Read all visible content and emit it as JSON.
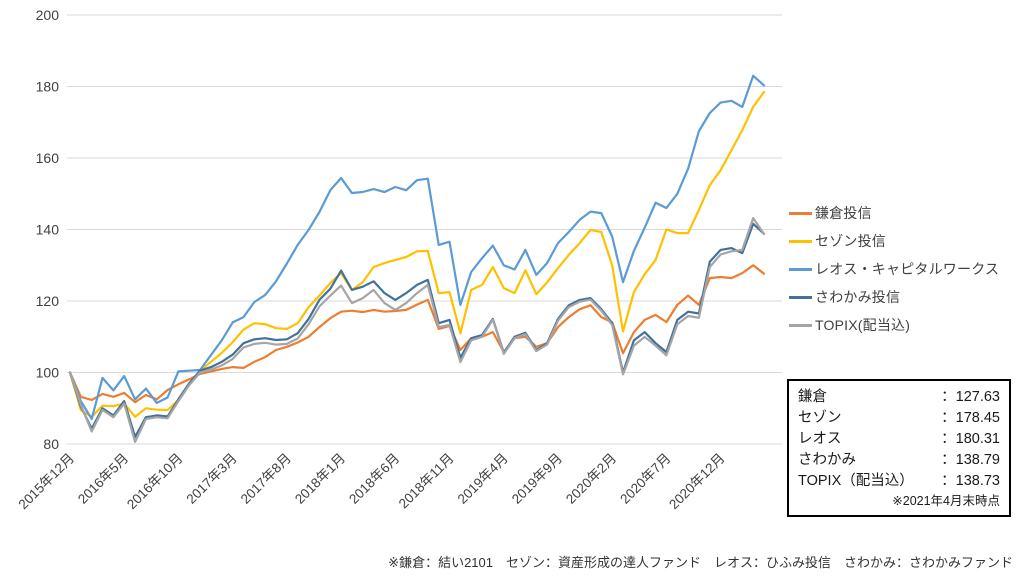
{
  "chart_data": {
    "type": "line",
    "title": "",
    "xlabel": "",
    "ylabel": "",
    "ylim": [
      80,
      200
    ],
    "grid": "horizontal",
    "legend_position": "right",
    "baseline_note": "index, start = 100 at 2015-12",
    "y_ticks": [
      80,
      100,
      120,
      140,
      160,
      180,
      200
    ],
    "x_ticks": [
      {
        "label": "2015年12月",
        "month_index": 0
      },
      {
        "label": "2016年5月",
        "month_index": 5
      },
      {
        "label": "2016年10月",
        "month_index": 10
      },
      {
        "label": "2017年3月",
        "month_index": 15
      },
      {
        "label": "2017年8月",
        "month_index": 20
      },
      {
        "label": "2018年1月",
        "month_index": 25
      },
      {
        "label": "2018年6月",
        "month_index": 30
      },
      {
        "label": "2018年11月",
        "month_index": 35
      },
      {
        "label": "2019年4月",
        "month_index": 40
      },
      {
        "label": "2019年9月",
        "month_index": 45
      },
      {
        "label": "2020年2月",
        "month_index": 50
      },
      {
        "label": "2020年7月",
        "month_index": 55
      },
      {
        "label": "2020年12月",
        "month_index": 60
      }
    ],
    "series": [
      {
        "name": "鎌倉投信",
        "color": "#ED7D31",
        "values": [
          100,
          93.2,
          92.3,
          94,
          93.2,
          94.3,
          91.7,
          93.7,
          92.5,
          95.1,
          96.7,
          98.1,
          99.6,
          100.3,
          101,
          101.5,
          101.3,
          103,
          104.3,
          106.3,
          107.2,
          108.4,
          110,
          112.7,
          115.2,
          117,
          117.3,
          116.9,
          117.5,
          117,
          117.2,
          117.5,
          119,
          120.3,
          112.2,
          113,
          106.3,
          109.6,
          110,
          111.3,
          105.7,
          109.6,
          110,
          107.2,
          108.2,
          112.7,
          115.5,
          117.7,
          118.8,
          115.5,
          114,
          105.4,
          111.3,
          114.7,
          116.1,
          114.1,
          118.9,
          121.5,
          118.9,
          126.4,
          126.7,
          126.4,
          127.8,
          130,
          127.63
        ]
      },
      {
        "name": "セゾン投信",
        "color": "#FFC000",
        "values": [
          100,
          89.5,
          87.6,
          90.7,
          90.6,
          91.3,
          87.6,
          90,
          89.6,
          89.5,
          92.3,
          97,
          100.5,
          103,
          105.5,
          108.5,
          112,
          113.8,
          113.5,
          112.4,
          112.2,
          113.8,
          118.3,
          121.5,
          125,
          127.8,
          123.1,
          125.3,
          129.5,
          130.6,
          131.5,
          132.3,
          133.9,
          134,
          122.2,
          122.5,
          111,
          123.1,
          124.5,
          129.5,
          123.6,
          122.2,
          128.6,
          121.9,
          125.2,
          129.2,
          132.9,
          136.2,
          139.9,
          139.3,
          130,
          111.5,
          122.5,
          127.5,
          131.5,
          140,
          139,
          139,
          145.5,
          152.4,
          156.6,
          162.2,
          167.8,
          174.3,
          178.45
        ]
      },
      {
        "name": "レオス・キャピタルワークス",
        "color": "#5B9BD5",
        "values": [
          100,
          92,
          87,
          98.5,
          95,
          99,
          92.5,
          95.5,
          91.5,
          93,
          100.3,
          100.5,
          100.7,
          104.9,
          109,
          114,
          115.5,
          119.7,
          121.7,
          125.5,
          130.5,
          135.7,
          139.9,
          144.9,
          151,
          154.4,
          150.2,
          150.5,
          151.3,
          150.5,
          151.9,
          151,
          153.8,
          154.2,
          135.7,
          136.6,
          118.9,
          128.1,
          132,
          135.5,
          130,
          128.8,
          134.3,
          127.3,
          130.6,
          136.2,
          139.3,
          142.7,
          145,
          144.6,
          138,
          125.3,
          134,
          140.5,
          147.5,
          146,
          150,
          157,
          167.5,
          172.6,
          175.5,
          176,
          174.3,
          183,
          180.31
        ]
      },
      {
        "name": "さわかみ投信",
        "color": "#41719C",
        "values": [
          100,
          90.5,
          84.3,
          90,
          88,
          92,
          82,
          87.5,
          88,
          87.7,
          92.5,
          97,
          100.5,
          101.5,
          103,
          105,
          108.2,
          109.3,
          109.6,
          109.1,
          109.3,
          111,
          115,
          120.3,
          123.4,
          128.5,
          123.1,
          124,
          125.5,
          122.2,
          120.3,
          122.2,
          124.5,
          125.9,
          113.8,
          114.7,
          104.1,
          109.6,
          110.5,
          115,
          105.5,
          110,
          111.1,
          106.3,
          108.2,
          115,
          118.8,
          120.3,
          120.8,
          117.7,
          113.8,
          100,
          109,
          111.3,
          108.2,
          105.7,
          114.7,
          117,
          116.5,
          131,
          134.3,
          134.8,
          133.4,
          141.6,
          138.79
        ]
      },
      {
        "name": "TOPIX(配当込)",
        "color": "#A5A5A5",
        "values": [
          100,
          91,
          83.5,
          89.5,
          87.5,
          91.3,
          80.6,
          87,
          87.5,
          87.2,
          92,
          96.5,
          100,
          100.8,
          102,
          103.8,
          107,
          108,
          108.3,
          107.8,
          108,
          109.5,
          113.5,
          118.5,
          121.5,
          124.3,
          119.4,
          120.8,
          123.1,
          119.4,
          117.5,
          119.4,
          122.2,
          124.5,
          112.7,
          113.3,
          102.9,
          109,
          110,
          114.8,
          105.2,
          109.6,
          110.7,
          106,
          107.8,
          114.5,
          118.3,
          119.8,
          120.4,
          117.3,
          113.3,
          99.5,
          107.5,
          110,
          107.5,
          104.8,
          113.5,
          115.8,
          115.3,
          129.5,
          133,
          133.9,
          134.3,
          143.2,
          138.73
        ]
      }
    ]
  },
  "colors": {
    "gridline": "#D9D9D9",
    "axis_text": "#404040",
    "box_border": "#000000"
  },
  "summary_box": {
    "separator": "：",
    "rows": [
      {
        "label": "鎌倉",
        "value": "127.63"
      },
      {
        "label": "セゾン",
        "value": "178.45"
      },
      {
        "label": "レオス",
        "value": "180.31"
      },
      {
        "label": "さわかみ",
        "value": "138.79"
      },
      {
        "label": "TOPIX（配当込）",
        "value": "138.73"
      }
    ],
    "note": "※2021年4月末時点"
  },
  "footnote": "※鎌倉：結い2101　セゾン：資産形成の達人ファンド　レオス：ひふみ投信　さわかみ：さわかみファンド"
}
